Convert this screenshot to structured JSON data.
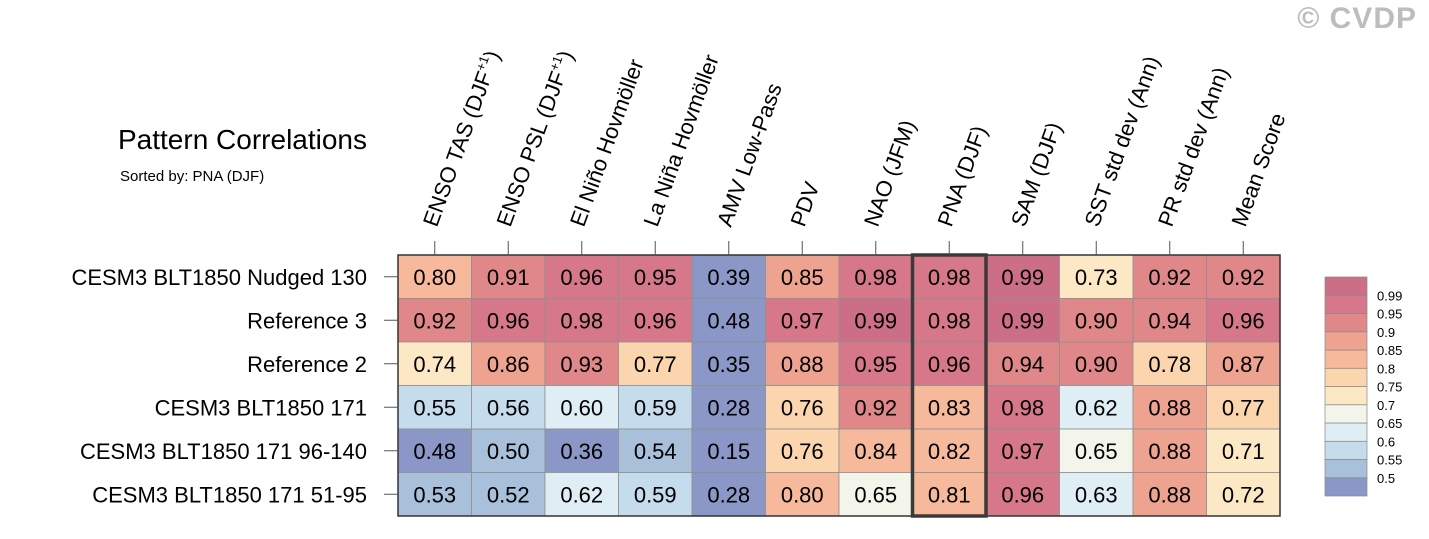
{
  "watermark": "© CVDP",
  "chart_data": {
    "type": "heatmap",
    "title": "Pattern Correlations",
    "subtitle": "Sorted by: PNA (DJF)",
    "columns": [
      {
        "pre": "ENSO TAS (DJF",
        "sup": "+1",
        "post": ")"
      },
      {
        "pre": "ENSO PSL (DJF",
        "sup": "+1",
        "post": ")"
      },
      {
        "pre": "El Niño Hovmöller",
        "sup": "",
        "post": ""
      },
      {
        "pre": "La Niña Hovmöller",
        "sup": "",
        "post": ""
      },
      {
        "pre": "AMV Low-Pass",
        "sup": "",
        "post": ""
      },
      {
        "pre": "PDV",
        "sup": "",
        "post": ""
      },
      {
        "pre": "NAO (JFM)",
        "sup": "",
        "post": ""
      },
      {
        "pre": "PNA (DJF)",
        "sup": "",
        "post": ""
      },
      {
        "pre": "SAM (DJF)",
        "sup": "",
        "post": ""
      },
      {
        "pre": "SST std dev (Ann)",
        "sup": "",
        "post": ""
      },
      {
        "pre": "PR std dev (Ann)",
        "sup": "",
        "post": ""
      },
      {
        "pre": "Mean Score",
        "sup": "",
        "post": ""
      }
    ],
    "rows": [
      "CESM3 BLT1850 Nudged 130",
      "Reference 3",
      "Reference 2",
      "CESM3 BLT1850 171",
      "CESM3 BLT1850 171 96-140",
      "CESM3 BLT1850 171 51-95"
    ],
    "values": [
      [
        "0.80",
        "0.91",
        "0.96",
        "0.95",
        "0.39",
        "0.85",
        "0.98",
        "0.98",
        "0.99",
        "0.73",
        "0.92",
        "0.92"
      ],
      [
        "0.92",
        "0.96",
        "0.98",
        "0.96",
        "0.48",
        "0.97",
        "0.99",
        "0.98",
        "0.99",
        "0.90",
        "0.94",
        "0.96"
      ],
      [
        "0.74",
        "0.86",
        "0.93",
        "0.77",
        "0.35",
        "0.88",
        "0.95",
        "0.96",
        "0.94",
        "0.90",
        "0.78",
        "0.87"
      ],
      [
        "0.55",
        "0.56",
        "0.60",
        "0.59",
        "0.28",
        "0.76",
        "0.92",
        "0.83",
        "0.98",
        "0.62",
        "0.88",
        "0.77"
      ],
      [
        "0.48",
        "0.50",
        "0.36",
        "0.54",
        "0.15",
        "0.76",
        "0.84",
        "0.82",
        "0.97",
        "0.65",
        "0.88",
        "0.71"
      ],
      [
        "0.53",
        "0.52",
        "0.62",
        "0.59",
        "0.28",
        "0.80",
        "0.65",
        "0.81",
        "0.96",
        "0.63",
        "0.88",
        "0.72"
      ]
    ],
    "highlight_column": 7,
    "colorbar": {
      "labels": [
        "0.99",
        "0.95",
        "0.9",
        "0.85",
        "0.8",
        "0.75",
        "0.7",
        "0.65",
        "0.6",
        "0.55",
        "0.5"
      ],
      "thresholds": [
        0.5,
        0.55,
        0.6,
        0.65,
        0.7,
        0.75,
        0.8,
        0.85,
        0.9,
        0.95,
        0.99
      ],
      "colors": [
        "#8a97c7",
        "#a8c0da",
        "#c5dced",
        "#dfeef4",
        "#f4f5ea",
        "#fde8c5",
        "#fbd5ad",
        "#f6b99b",
        "#eea290",
        "#e08889",
        "#d6788a",
        "#cc6e86"
      ]
    }
  }
}
